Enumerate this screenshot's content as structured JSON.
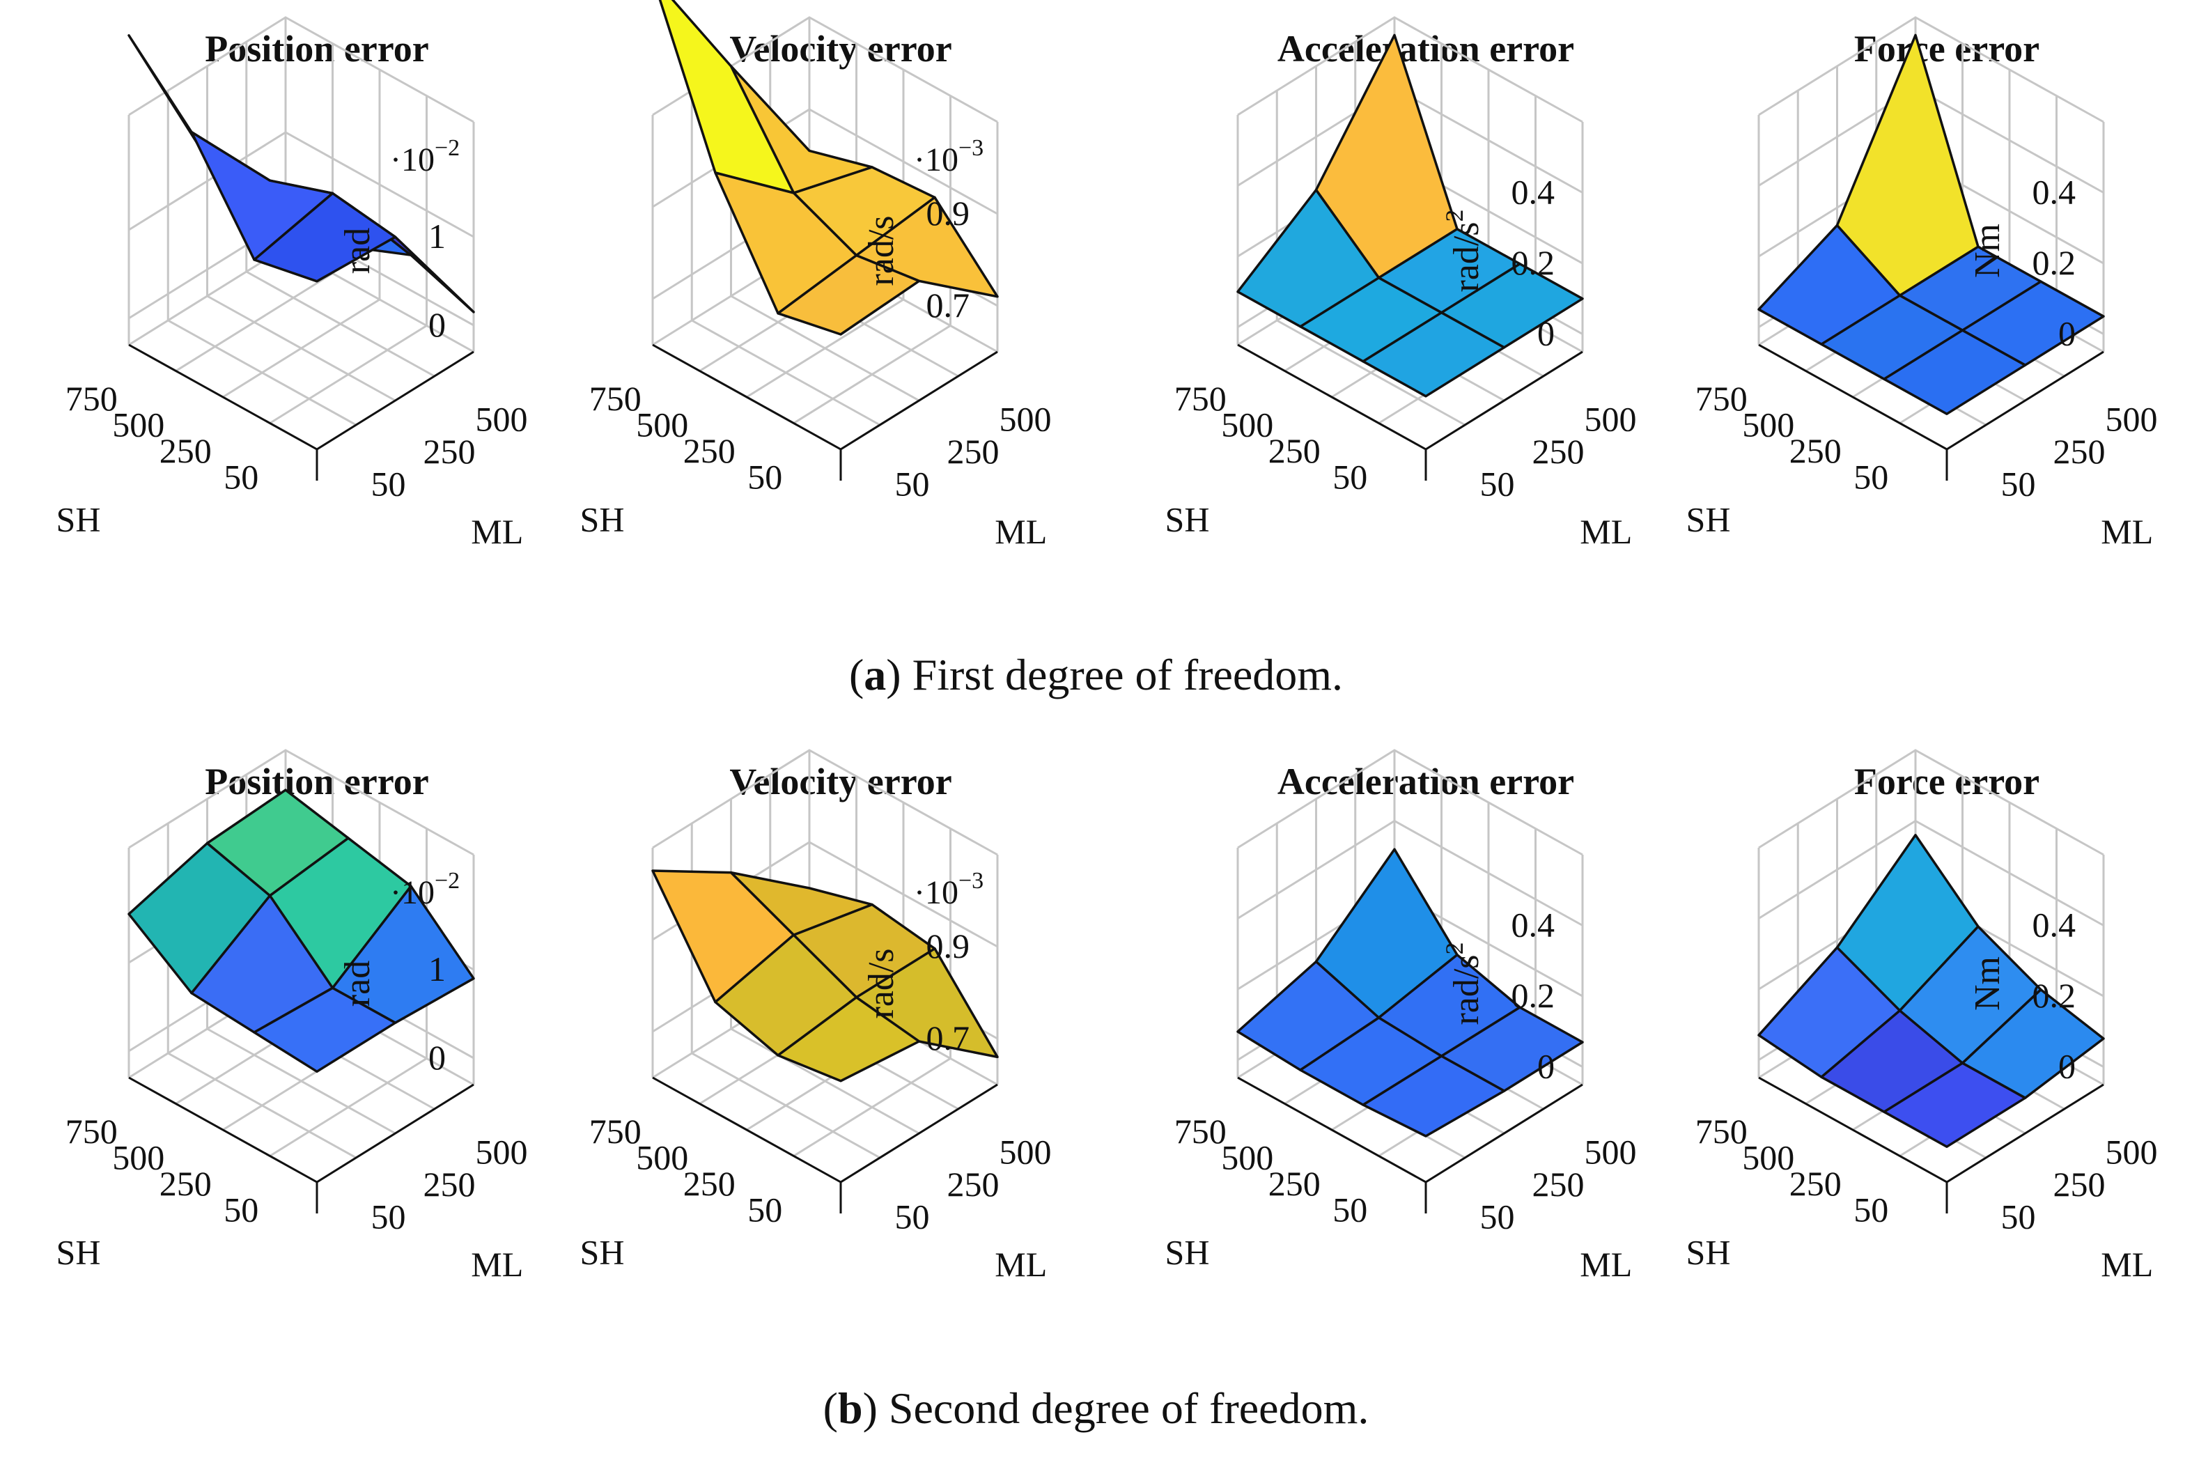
{
  "figure": {
    "captions": [
      {
        "label": "a",
        "text": "First degree of freedom."
      },
      {
        "label": "b",
        "text": "Second degree of freedom."
      }
    ]
  },
  "chart_data": [
    {
      "row": "a",
      "type": "surface3d",
      "title": "Position error",
      "zlabel": "rad",
      "multiplier": "·10",
      "exponent": "−2",
      "ztick_labels": [
        "0",
        "1"
      ],
      "zticks": [
        0,
        1
      ],
      "zlim": [
        -0.3,
        2.3
      ],
      "xlabel": "SH",
      "ylabel": "ML",
      "x_ticks": [
        "50",
        "250",
        "500",
        "750"
      ],
      "y_ticks": [
        "50",
        "250",
        "500"
      ],
      "grid": [
        [
          1.6,
          1.45,
          2.5,
          3.2
        ],
        [
          1.55,
          1.65,
          1.4,
          1.25
        ],
        [
          0.15,
          0.4,
          0.1,
          -0.25
        ]
      ],
      "face_colors": [
        [
          "#2e52ef",
          "#3a5cf8",
          "#f2f225"
        ],
        [
          "#3a38c8",
          "#2d6cf5",
          "#3d3cd0"
        ]
      ]
    },
    {
      "row": "a",
      "type": "surface3d",
      "title": "Velocity error",
      "zlabel": "rad/s",
      "multiplier": "·10",
      "exponent": "−3",
      "ztick_labels": [
        "0.7",
        "0.9"
      ],
      "zticks": [
        0.7,
        0.9
      ],
      "zlim": [
        0.6,
        1.1
      ],
      "xlabel": "SH",
      "ylabel": "ML",
      "x_ticks": [
        "50",
        "250",
        "500",
        "750"
      ],
      "y_ticks": [
        "50",
        "250",
        "500"
      ],
      "grid": [
        [
          0.85,
          0.82,
          1.05,
          1.4
        ],
        [
          0.86,
          0.84,
          0.9,
          1.1
        ],
        [
          0.72,
          0.86,
          0.85,
          0.81
        ]
      ],
      "face_colors": [
        [
          "#f8be3c",
          "#f9c338",
          "#f5f61c"
        ],
        [
          "#f9c13a",
          "#f8c83a",
          "#f8c636"
        ]
      ]
    },
    {
      "row": "a",
      "type": "surface3d",
      "title": "Acceleration error",
      "zlabel": "rad/s",
      "zlabel_sup": "2",
      "ztick_labels": [
        "0",
        "0.2",
        "0.4"
      ],
      "zticks": [
        0,
        0.2,
        0.4
      ],
      "zlim": [
        -0.05,
        0.6
      ],
      "xlabel": "SH",
      "ylabel": "ML",
      "x_ticks": [
        "50",
        "250",
        "500",
        "750"
      ],
      "y_ticks": [
        "50",
        "250",
        "500"
      ],
      "grid": [
        [
          0.1,
          0.1,
          0.1,
          0.1
        ],
        [
          0.1,
          0.1,
          0.1,
          0.25
        ],
        [
          0.1,
          0.1,
          0.1,
          0.55
        ]
      ],
      "face_colors": [
        [
          "#20a4e2",
          "#1ea9e0",
          "#20a8de"
        ],
        [
          "#1fa6e0",
          "#22a4e4",
          "#fbbc3d"
        ]
      ]
    },
    {
      "row": "a",
      "type": "surface3d",
      "title": "Force error",
      "zlabel": "Nm",
      "ztick_labels": [
        "0",
        "0.2",
        "0.4"
      ],
      "zticks": [
        0,
        0.2,
        0.4
      ],
      "zlim": [
        -0.05,
        0.6
      ],
      "xlabel": "SH",
      "ylabel": "ML",
      "x_ticks": [
        "50",
        "250",
        "500",
        "750"
      ],
      "y_ticks": [
        "50",
        "250",
        "500"
      ],
      "grid": [
        [
          0.05,
          0.05,
          0.05,
          0.05
        ],
        [
          0.05,
          0.05,
          0.05,
          0.15
        ],
        [
          0.05,
          0.05,
          0.05,
          0.55
        ]
      ],
      "face_colors": [
        [
          "#2a6ff2",
          "#2a73f0",
          "#2e6ef5"
        ],
        [
          "#2c70f3",
          "#2e72f1",
          "#f2e22a"
        ]
      ]
    },
    {
      "row": "b",
      "type": "surface3d",
      "title": "Position error",
      "zlabel": "rad",
      "multiplier": "·10",
      "exponent": "−2",
      "ztick_labels": [
        "0",
        "1"
      ],
      "zticks": [
        0,
        1
      ],
      "zlim": [
        -0.3,
        2.3
      ],
      "xlabel": "SH",
      "ylabel": "ML",
      "x_ticks": [
        "50",
        "250",
        "500",
        "750"
      ],
      "y_ticks": [
        "50",
        "250",
        "500"
      ],
      "grid": [
        [
          0.95,
          1.0,
          1.05,
          1.55
        ],
        [
          0.95,
          0.95,
          1.6,
          1.8
        ],
        [
          0.9,
          1.55,
          1.7,
          1.85
        ]
      ],
      "face_colors": [
        [
          "#3770f7",
          "#3a6df5",
          "#22b5b2"
        ],
        [
          "#2e7cf2",
          "#2dc9a1",
          "#40cb8f"
        ]
      ]
    },
    {
      "row": "b",
      "type": "surface3d",
      "title": "Velocity error",
      "zlabel": "rad/s",
      "multiplier": "·10",
      "exponent": "−3",
      "ztick_labels": [
        "0.7",
        "0.9"
      ],
      "zticks": [
        0.7,
        0.9
      ],
      "zlim": [
        0.6,
        1.1
      ],
      "xlabel": "SH",
      "ylabel": "ML",
      "x_ticks": [
        "50",
        "250",
        "500",
        "750"
      ],
      "y_ticks": [
        "50",
        "250",
        "500"
      ],
      "grid": [
        [
          0.82,
          0.8,
          0.84,
          1.05
        ],
        [
          0.8,
          0.82,
          0.88,
          0.94
        ],
        [
          0.66,
          0.82,
          0.84,
          0.8
        ]
      ],
      "face_colors": [
        [
          "#d9c129",
          "#d8bd2c",
          "#fbb83a"
        ],
        [
          "#d5bd2b",
          "#dcb82e",
          "#e0b82d"
        ]
      ]
    },
    {
      "row": "b",
      "type": "surface3d",
      "title": "Acceleration error",
      "zlabel": "rad/s",
      "zlabel_sup": "2",
      "ztick_labels": [
        "0",
        "0.2",
        "0.4"
      ],
      "zticks": [
        0,
        0.2,
        0.4
      ],
      "zlim": [
        -0.05,
        0.6
      ],
      "xlabel": "SH",
      "ylabel": "ML",
      "x_ticks": [
        "50",
        "250",
        "500",
        "750"
      ],
      "y_ticks": [
        "50",
        "250",
        "500"
      ],
      "grid": [
        [
          0.08,
          0.07,
          0.07,
          0.08
        ],
        [
          0.07,
          0.07,
          0.08,
          0.14
        ],
        [
          0.07,
          0.07,
          0.12,
          0.32
        ]
      ],
      "face_colors": [
        [
          "#336cf6",
          "#3270f6",
          "#3372f5"
        ],
        [
          "#346ff3",
          "#3170f4",
          "#1f8fe8"
        ]
      ]
    },
    {
      "row": "b",
      "type": "surface3d",
      "title": "Force error",
      "zlabel": "Nm",
      "ztick_labels": [
        "0",
        "0.2",
        "0.4"
      ],
      "zticks": [
        0,
        0.2,
        0.4
      ],
      "zlim": [
        -0.05,
        0.6
      ],
      "xlabel": "SH",
      "ylabel": "ML",
      "x_ticks": [
        "50",
        "250",
        "500",
        "750"
      ],
      "y_ticks": [
        "50",
        "250",
        "500"
      ],
      "grid": [
        [
          0.05,
          0.05,
          0.05,
          0.07
        ],
        [
          0.05,
          0.05,
          0.1,
          0.18
        ],
        [
          0.08,
          0.12,
          0.2,
          0.36
        ]
      ],
      "face_colors": [
        [
          "#3d4ff0",
          "#3a4ce8",
          "#3b6ff7"
        ],
        [
          "#2b8aef",
          "#2e8df0",
          "#20a6e0"
        ]
      ]
    }
  ]
}
